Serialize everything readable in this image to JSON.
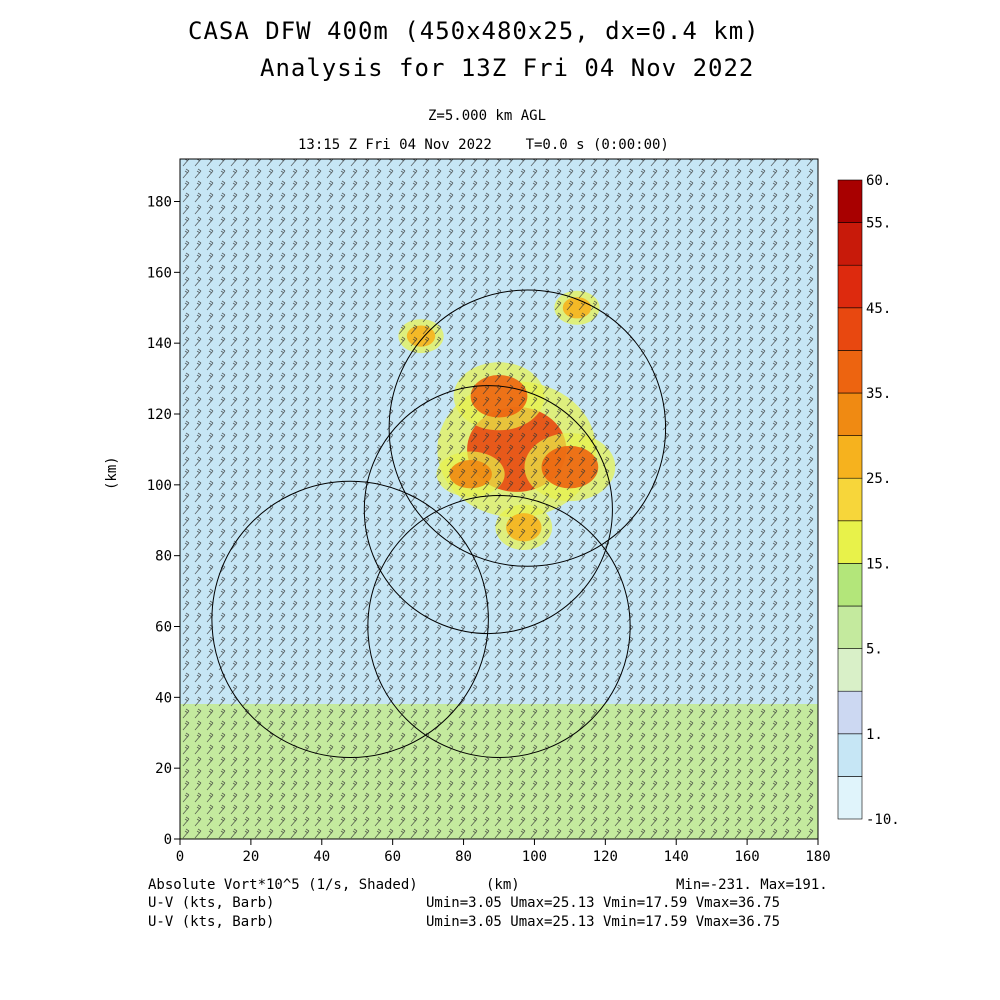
{
  "header": {
    "title_line1": "CASA DFW 400m (450x480x25, dx=0.4 km)",
    "title_line2": "Analysis for 13Z Fri 04 Nov 2022",
    "level": "Z=5.000 km AGL",
    "time": "13:15 Z Fri 04 Nov 2022    T=0.0 s (0:00:00)"
  },
  "footer": {
    "field1": "Absolute Vort*10^5 (1/s, Shaded)",
    "xunit": "(km)",
    "minmax": "Min=-231. Max=191.",
    "field2": "U-V (kts, Barb)",
    "range2": "Umin=3.05 Umax=25.13 Vmin=17.59 Vmax=36.75",
    "field3": "U-V (kts, Barb)",
    "range3": "Umin=3.05 Umax=25.13 Vmin=17.59 Vmax=36.75"
  },
  "chart_data": {
    "type": "heatmap",
    "xlabel": "",
    "ylabel": "(km)",
    "xlim": [
      0,
      180
    ],
    "ylim": [
      0,
      192
    ],
    "x_ticks": [
      0,
      20,
      40,
      60,
      80,
      100,
      120,
      140,
      160,
      180
    ],
    "y_ticks": [
      0,
      20,
      40,
      60,
      80,
      100,
      120,
      140,
      160,
      180
    ],
    "colorbar": {
      "levels": [
        -10,
        -5,
        1,
        2.5,
        5,
        10,
        15,
        20,
        25,
        30,
        35,
        40,
        45,
        50,
        55,
        60
      ],
      "labels": [
        {
          "value": 60,
          "text": "60."
        },
        {
          "value": 55,
          "text": "55."
        },
        {
          "value": 45,
          "text": "45."
        },
        {
          "value": 35,
          "text": "35."
        },
        {
          "value": 25,
          "text": "25."
        },
        {
          "value": 15,
          "text": "15."
        },
        {
          "value": 5,
          "text": "5."
        },
        {
          "value": 1,
          "text": "1."
        },
        {
          "value": -10,
          "text": "-10."
        }
      ],
      "colors": [
        "#e0f4fb",
        "#c6e6f5",
        "#ccd8f2",
        "#d9f0c8",
        "#c4ea9e",
        "#b3e67a",
        "#e8f24a",
        "#f7d63a",
        "#f6b21e",
        "#f08a12",
        "#ed6410",
        "#e84810",
        "#dd2a0e",
        "#c81a0a",
        "#a80000"
      ]
    },
    "vorticity_regions": [
      {
        "x": 95,
        "y": 110,
        "rx": 14,
        "ry": 12,
        "value": 40
      },
      {
        "x": 90,
        "y": 125,
        "rx": 8,
        "ry": 6,
        "value": 35
      },
      {
        "x": 110,
        "y": 105,
        "rx": 8,
        "ry": 6,
        "value": 35
      },
      {
        "x": 82,
        "y": 103,
        "rx": 6,
        "ry": 4,
        "value": 30
      },
      {
        "x": 97,
        "y": 88,
        "rx": 5,
        "ry": 4,
        "value": 25
      },
      {
        "x": 112,
        "y": 150,
        "rx": 4,
        "ry": 3,
        "value": 25
      },
      {
        "x": 68,
        "y": 142,
        "rx": 4,
        "ry": 3,
        "value": 25
      }
    ],
    "radar_rings": [
      {
        "x": 98,
        "y": 116,
        "r": 39
      },
      {
        "x": 87,
        "y": 93,
        "r": 35
      },
      {
        "x": 48,
        "y": 62,
        "r": 39
      },
      {
        "x": 90,
        "y": 60,
        "r": 37
      }
    ]
  }
}
